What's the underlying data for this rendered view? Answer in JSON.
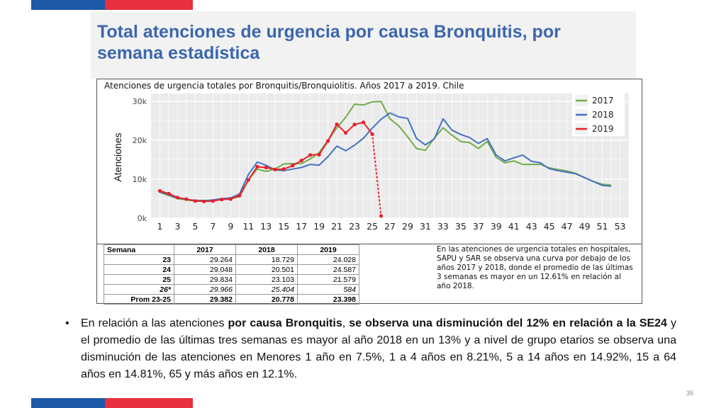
{
  "slide": {
    "title": "Total atenciones de urgencia por causa Bronquitis, por semana estadística",
    "page_number": "35",
    "colors": {
      "accent_blue": "#1d5aa8",
      "accent_red": "#e8303e",
      "title": "#3b66ae"
    }
  },
  "chart_data": {
    "type": "line",
    "title": "Atenciones de urgencia totales por Bronquitis/Bronquiolitis. Años 2017 a 2019. Chile",
    "xlabel": "",
    "ylabel": "Atenciones",
    "ylim": [
      0,
      32000
    ],
    "xlim": [
      0,
      54
    ],
    "x_ticks": [
      1,
      3,
      5,
      7,
      9,
      11,
      13,
      15,
      17,
      19,
      21,
      23,
      25,
      27,
      29,
      31,
      33,
      35,
      37,
      39,
      41,
      43,
      45,
      47,
      49,
      51,
      53
    ],
    "y_ticks": [
      {
        "value": 0,
        "label": "0k"
      },
      {
        "value": 10000,
        "label": "10k"
      },
      {
        "value": 20000,
        "label": "20k"
      },
      {
        "value": 30000,
        "label": "30k"
      }
    ],
    "grid": true,
    "legend_position": "top-right",
    "series": [
      {
        "name": "2017",
        "color": "#70ad47",
        "weeks": [
          1,
          2,
          3,
          4,
          5,
          6,
          7,
          8,
          9,
          10,
          11,
          12,
          13,
          14,
          15,
          16,
          17,
          18,
          19,
          20,
          21,
          22,
          23,
          24,
          25,
          26,
          27,
          28,
          29,
          30,
          31,
          32,
          33,
          34,
          35,
          36,
          37,
          38,
          39,
          40,
          41,
          42,
          43,
          44,
          45,
          46,
          47,
          48,
          49,
          50,
          51,
          52
        ],
        "values": [
          6600,
          5800,
          5000,
          4700,
          4400,
          4400,
          4600,
          4800,
          5000,
          5500,
          9800,
          12600,
          12000,
          12600,
          13900,
          14000,
          14000,
          15200,
          16800,
          20000,
          23200,
          25900,
          29264,
          29048,
          29834,
          29966,
          25500,
          23700,
          20900,
          17900,
          17400,
          20500,
          23200,
          21300,
          19700,
          19400,
          17900,
          19700,
          15600,
          14200,
          14700,
          13800,
          13800,
          13800,
          12900,
          12500,
          12100,
          11500,
          10400,
          9400,
          8700,
          8500
        ]
      },
      {
        "name": "2018",
        "color": "#4472c4",
        "weeks": [
          1,
          2,
          3,
          4,
          5,
          6,
          7,
          8,
          9,
          10,
          11,
          12,
          13,
          14,
          15,
          16,
          17,
          18,
          19,
          20,
          21,
          22,
          23,
          24,
          25,
          26,
          27,
          28,
          29,
          30,
          31,
          32,
          33,
          34,
          35,
          36,
          37,
          38,
          39,
          40,
          41,
          42,
          43,
          44,
          45,
          46,
          47,
          48,
          49,
          50,
          51,
          52
        ],
        "values": [
          6800,
          6000,
          5200,
          4800,
          4600,
          4500,
          4700,
          5000,
          5200,
          6200,
          11200,
          14400,
          13600,
          12400,
          12200,
          12600,
          13000,
          13800,
          13600,
          15800,
          18500,
          17300,
          18729,
          20501,
          23103,
          25404,
          27000,
          26000,
          25600,
          20500,
          18800,
          20300,
          25500,
          22600,
          21500,
          20700,
          19200,
          20400,
          16200,
          14700,
          15500,
          16200,
          14600,
          14200,
          12700,
          12200,
          11800,
          11400,
          10400,
          9400,
          8400,
          8200
        ]
      },
      {
        "name": "2019",
        "color": "#e8202a",
        "weeks": [
          1,
          2,
          3,
          4,
          5,
          6,
          7,
          8,
          9,
          10,
          11,
          12,
          13,
          14,
          15,
          16,
          17,
          18,
          19,
          20,
          21,
          22,
          23,
          24,
          25
        ],
        "values": [
          7000,
          6300,
          5300,
          4900,
          4400,
          4300,
          4400,
          4800,
          4900,
          5800,
          9800,
          13200,
          13000,
          12500,
          12600,
          13500,
          14800,
          16200,
          16300,
          19800,
          24100,
          21900,
          24028,
          24587,
          21579
        ],
        "dotted_weeks": [
          25,
          26
        ],
        "dotted_values": [
          21579,
          584
        ]
      }
    ]
  },
  "table": {
    "headers": [
      "Semana",
      "2017",
      "2018",
      "2019"
    ],
    "rows": [
      {
        "cells": [
          "23",
          "29.264",
          "18.729",
          "24.028"
        ],
        "style": ""
      },
      {
        "cells": [
          "24",
          "29.048",
          "20.501",
          "24.587"
        ],
        "style": ""
      },
      {
        "cells": [
          "25",
          "29.834",
          "23.103",
          "21.579"
        ],
        "style": ""
      },
      {
        "cells": [
          "26*",
          "29.966",
          "25.404",
          "584"
        ],
        "style": "italic"
      },
      {
        "cells": [
          "Prom 23-25",
          "29.382",
          "20.778",
          "23.398"
        ],
        "style": "bold"
      }
    ]
  },
  "note": "En las atenciones de urgencia totales en hospitales, SAPU y SAR se observa una curva por debajo de los años 2017 y 2018, donde el promedio de las últimas 3 semanas es mayor en un 12.61% en relación al año 2018.",
  "bullet": {
    "symbol": "•",
    "t1": "En relación a las atenciones ",
    "b1": "por causa Bronquitis",
    "t2": ", ",
    "b2": "se observa una disminución del 12% en relación a la SE24",
    "t3": " y el promedio de las últimas tres semanas es mayor al año 2018 en un 13% y a nivel de grupo etarios se observa una disminución de las atenciones en Menores 1 año en 7.5%, 1 a 4 años en 8.21%, 5 a 14 años en 14.92%, 15 a 64 años en 14.81%, 65 y más años en 12.1%."
  }
}
